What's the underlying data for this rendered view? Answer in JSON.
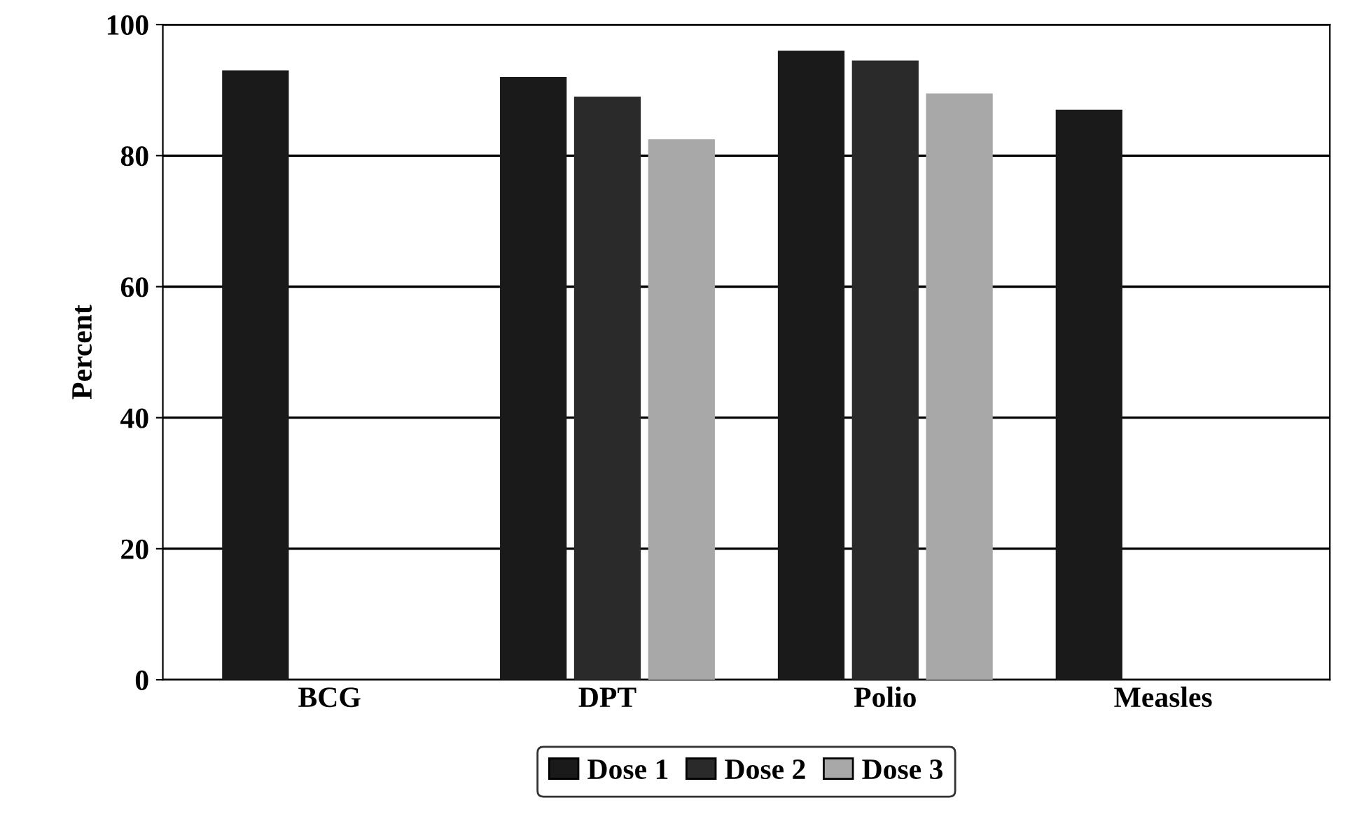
{
  "chart_data": {
    "type": "bar",
    "ylabel": "Percent",
    "categories": [
      "BCG",
      "DPT",
      "Polio",
      "Measles"
    ],
    "series": [
      {
        "name": "Dose 1",
        "color": "#1a1a1a",
        "values": [
          93,
          92,
          96,
          87
        ]
      },
      {
        "name": "Dose 2",
        "color": "#2a2a2a",
        "values": [
          null,
          89,
          94.5,
          null
        ]
      },
      {
        "name": "Dose 3",
        "color": "#a8a8a8",
        "values": [
          null,
          82.5,
          89.5,
          null
        ]
      }
    ],
    "ylim": [
      0,
      100
    ],
    "yticks": [
      0,
      20,
      40,
      60,
      80,
      100
    ],
    "grid": "y",
    "legend": "bottom"
  }
}
